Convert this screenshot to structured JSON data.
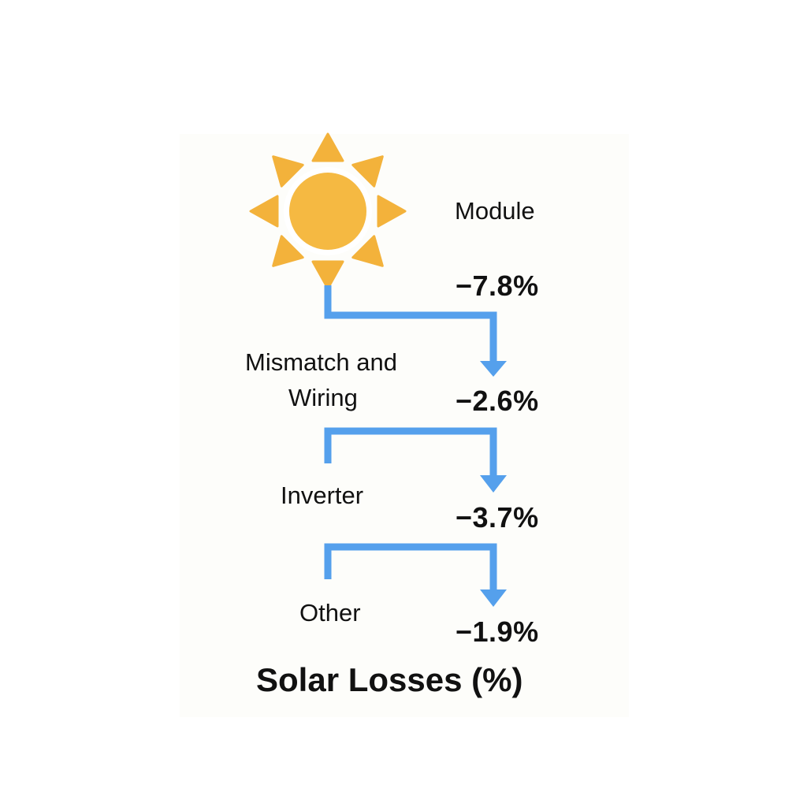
{
  "colors": {
    "sun": "#f5b942",
    "sun_rays": "#f3b23b",
    "arrow": "#55a0ec",
    "text": "#111111",
    "panel": "#fdfdfa"
  },
  "icons": {
    "sun": "sun-icon",
    "arrow": "arrow-down-icon"
  },
  "title": "Solar Losses (%)",
  "stages": [
    {
      "label": "Module",
      "value": "−7.8%"
    },
    {
      "label": "Mismatch and\nWiring",
      "label_line1": "Mismatch and",
      "label_line2": "Wiring",
      "value": "−2.6%"
    },
    {
      "label": "Inverter",
      "value": "−3.7%"
    },
    {
      "label": "Other",
      "value": "−1.9%"
    }
  ]
}
